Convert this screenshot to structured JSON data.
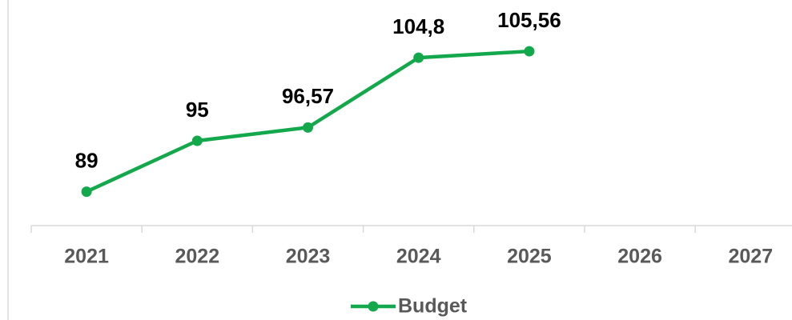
{
  "chart_data": {
    "type": "line",
    "categories": [
      "2021",
      "2022",
      "2023",
      "2024",
      "2025",
      "2026",
      "2027"
    ],
    "series": [
      {
        "name": "Budget",
        "color": "#13a84b",
        "values": [
          89,
          95,
          96.57,
          104.8,
          105.56,
          null,
          null
        ],
        "value_labels": [
          "89",
          "95",
          "96,57",
          "104,8",
          "105,56",
          null,
          null
        ]
      }
    ],
    "ylim": [
      85,
      110
    ]
  }
}
